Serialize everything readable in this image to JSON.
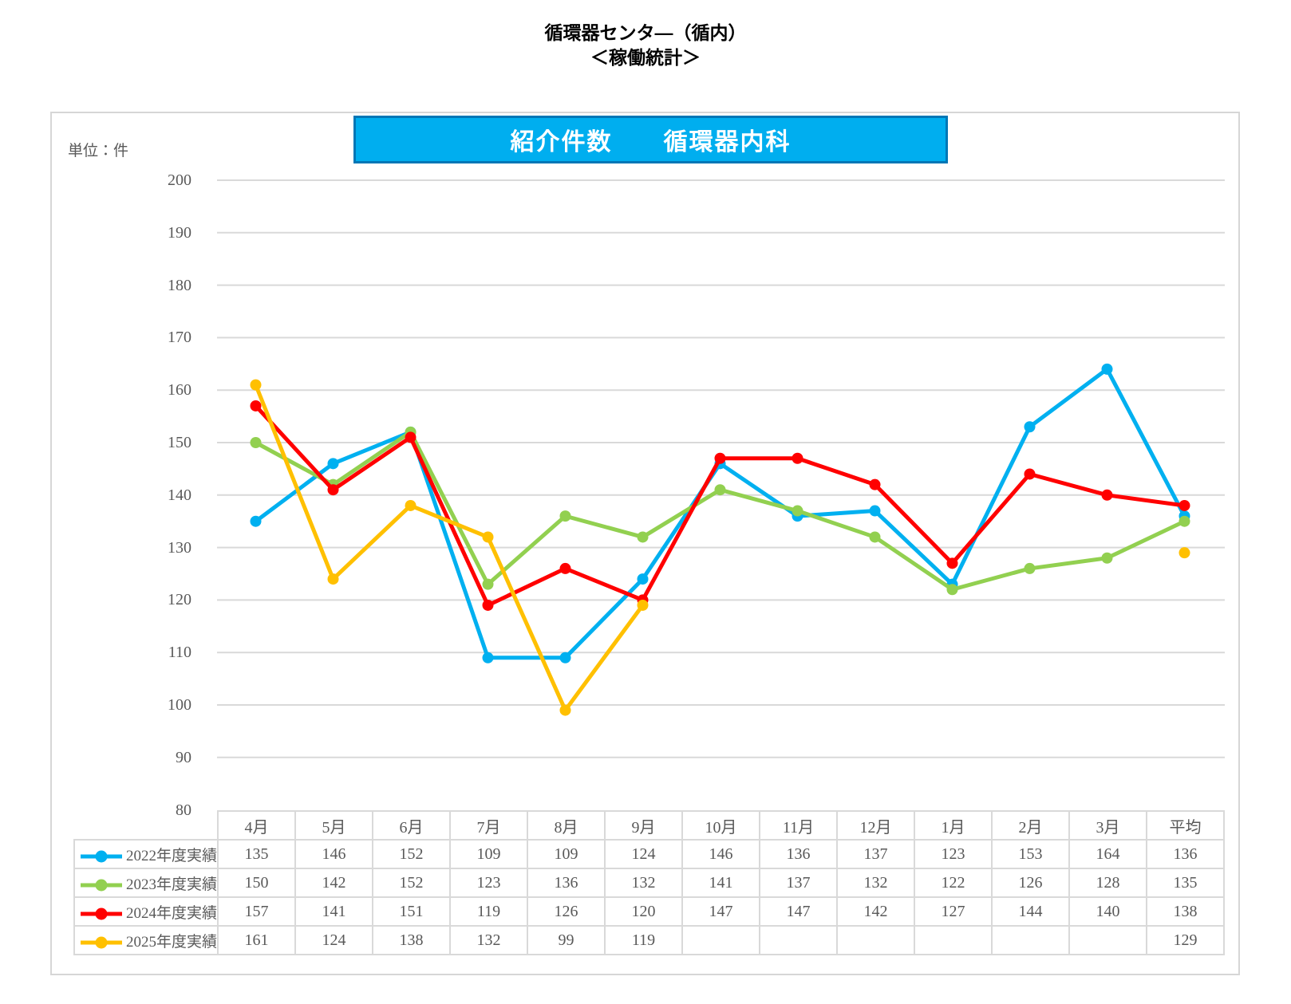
{
  "page_title": {
    "line1": "循環器センタ―（循内）",
    "line2": "＜稼働統計＞"
  },
  "unit_label": "単位：件",
  "banner": {
    "title": "紹介件数　　循環器内科",
    "bg_color": "#00AEEF",
    "border_color": "#0077B6",
    "text_color": "#FFFFFF"
  },
  "chart_data": {
    "type": "line",
    "title": "紹介件数　循環器内科",
    "categories": [
      "4月",
      "5月",
      "6月",
      "7月",
      "8月",
      "9月",
      "10月",
      "11月",
      "12月",
      "1月",
      "2月",
      "3月",
      "平均"
    ],
    "series": [
      {
        "name": "2022年度実績",
        "color": "#00B0F0",
        "values": [
          135,
          146,
          152,
          109,
          109,
          124,
          146,
          136,
          137,
          123,
          153,
          164,
          136
        ]
      },
      {
        "name": "2023年度実績",
        "color": "#92D050",
        "values": [
          150,
          142,
          152,
          123,
          136,
          132,
          141,
          137,
          132,
          122,
          126,
          128,
          135
        ]
      },
      {
        "name": "2024年度実績",
        "color": "#FF0000",
        "values": [
          157,
          141,
          151,
          119,
          126,
          120,
          147,
          147,
          142,
          127,
          144,
          140,
          138
        ]
      },
      {
        "name": "2025年度実績",
        "color": "#FFC000",
        "values": [
          161,
          124,
          138,
          132,
          99,
          119,
          null,
          null,
          null,
          null,
          null,
          null,
          129
        ]
      }
    ],
    "ylabel": "件",
    "ylim": [
      80,
      200
    ],
    "ystep": 10,
    "grid": true,
    "gridline_color": "#D9D9D9",
    "axis_text_color": "#595959",
    "legend_position": "table-left"
  }
}
